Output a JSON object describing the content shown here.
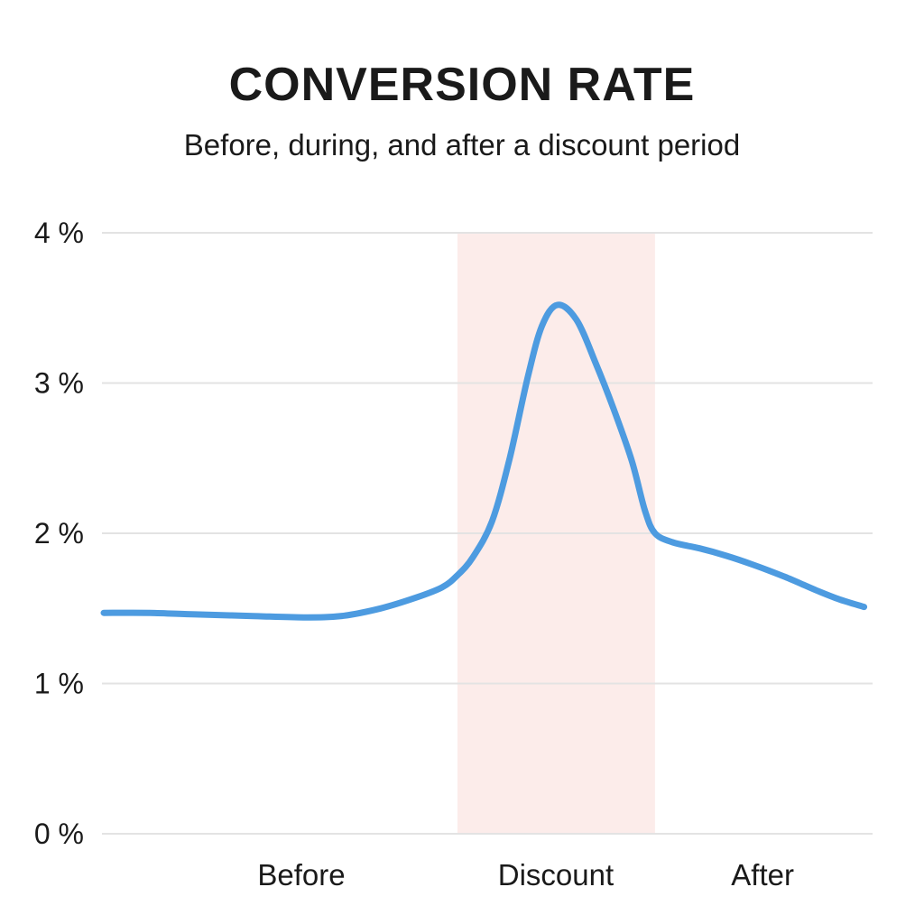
{
  "header": {
    "title": "CONVERSION RATE",
    "subtitle": "Before, during, and after a discount period"
  },
  "colors": {
    "line": "#4d9be0",
    "highlight_band": "#fcecea",
    "gridline": "#e3e3e3",
    "text": "#1a1a1a"
  },
  "chart_data": {
    "type": "line",
    "title": "CONVERSION RATE",
    "subtitle": "Before, during, and after a discount period",
    "xlabel": "",
    "ylabel": "",
    "ylim": [
      0,
      4
    ],
    "grid": "horizontal",
    "y_ticks": [
      {
        "value": 0,
        "label": "0 %"
      },
      {
        "value": 1,
        "label": "1 %"
      },
      {
        "value": 2,
        "label": "2 %"
      },
      {
        "value": 3,
        "label": "3 %"
      },
      {
        "value": 4,
        "label": "4 %"
      }
    ],
    "x_axis": {
      "unit": "relative timeline position 0-100",
      "period_labels": [
        {
          "label": "Before",
          "center_t": 25.7
        },
        {
          "label": "Discount",
          "center_t": 58.8
        },
        {
          "label": "After",
          "center_t": 85.7
        }
      ]
    },
    "highlight_region": {
      "label": "Discount",
      "t_start": 46.0,
      "t_end": 71.7,
      "color": "#fcecea"
    },
    "series": [
      {
        "name": "Conversion rate (%)",
        "color": "#4d9be0",
        "points": [
          [
            0,
            1.47
          ],
          [
            6,
            1.47
          ],
          [
            12,
            1.46
          ],
          [
            19,
            1.45
          ],
          [
            26,
            1.44
          ],
          [
            31,
            1.45
          ],
          [
            36,
            1.5
          ],
          [
            40.5,
            1.57
          ],
          [
            44,
            1.64
          ],
          [
            46,
            1.72
          ],
          [
            48,
            1.84
          ],
          [
            50.5,
            2.08
          ],
          [
            52.8,
            2.5
          ],
          [
            55.2,
            3.05
          ],
          [
            57,
            3.38
          ],
          [
            59,
            3.52
          ],
          [
            61.5,
            3.42
          ],
          [
            64,
            3.13
          ],
          [
            66.3,
            2.83
          ],
          [
            68.7,
            2.48
          ],
          [
            70.4,
            2.15
          ],
          [
            71.7,
            2.0
          ],
          [
            74,
            1.94
          ],
          [
            77.5,
            1.9
          ],
          [
            81,
            1.85
          ],
          [
            84.5,
            1.79
          ],
          [
            88.6,
            1.71
          ],
          [
            92.7,
            1.62
          ],
          [
            95.7,
            1.56
          ],
          [
            98.9,
            1.51
          ]
        ]
      }
    ]
  }
}
